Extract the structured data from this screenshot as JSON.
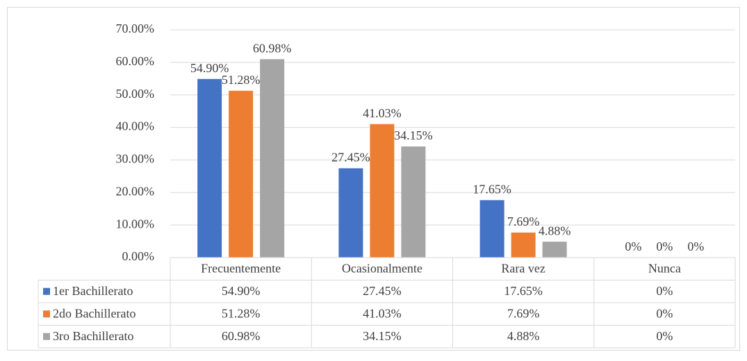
{
  "chart_data": {
    "type": "bar",
    "categories": [
      "Frecuentemente",
      "Ocasionalmente",
      "Rara vez",
      "Nunca"
    ],
    "series": [
      {
        "name": "1er Bachillerato",
        "color": "#4472c4",
        "values": [
          54.9,
          27.45,
          17.65,
          0
        ],
        "value_labels": [
          "54.90%",
          "27.45%",
          "17.65%",
          "0%"
        ]
      },
      {
        "name": "2do Bachillerato",
        "color": "#ed7d31",
        "values": [
          51.28,
          41.03,
          7.69,
          0
        ],
        "value_labels": [
          "51.28%",
          "41.03%",
          "7.69%",
          "0%"
        ]
      },
      {
        "name": "3ro Bachillerato",
        "color": "#a5a5a5",
        "values": [
          60.98,
          34.15,
          4.88,
          0
        ],
        "value_labels": [
          "60.98%",
          "34.15%",
          "4.88%",
          "0%"
        ]
      }
    ],
    "ylim": [
      0,
      70
    ],
    "yticks": [
      {
        "value": 0,
        "label": "0.00%"
      },
      {
        "value": 10,
        "label": "10.00%"
      },
      {
        "value": 20,
        "label": "20.00%"
      },
      {
        "value": 30,
        "label": "30.00%"
      },
      {
        "value": 40,
        "label": "40.00%"
      },
      {
        "value": 50,
        "label": "50.00%"
      },
      {
        "value": 60,
        "label": "60.00%"
      },
      {
        "value": 70,
        "label": "70.00%"
      }
    ],
    "grid": true,
    "data_table": true
  }
}
